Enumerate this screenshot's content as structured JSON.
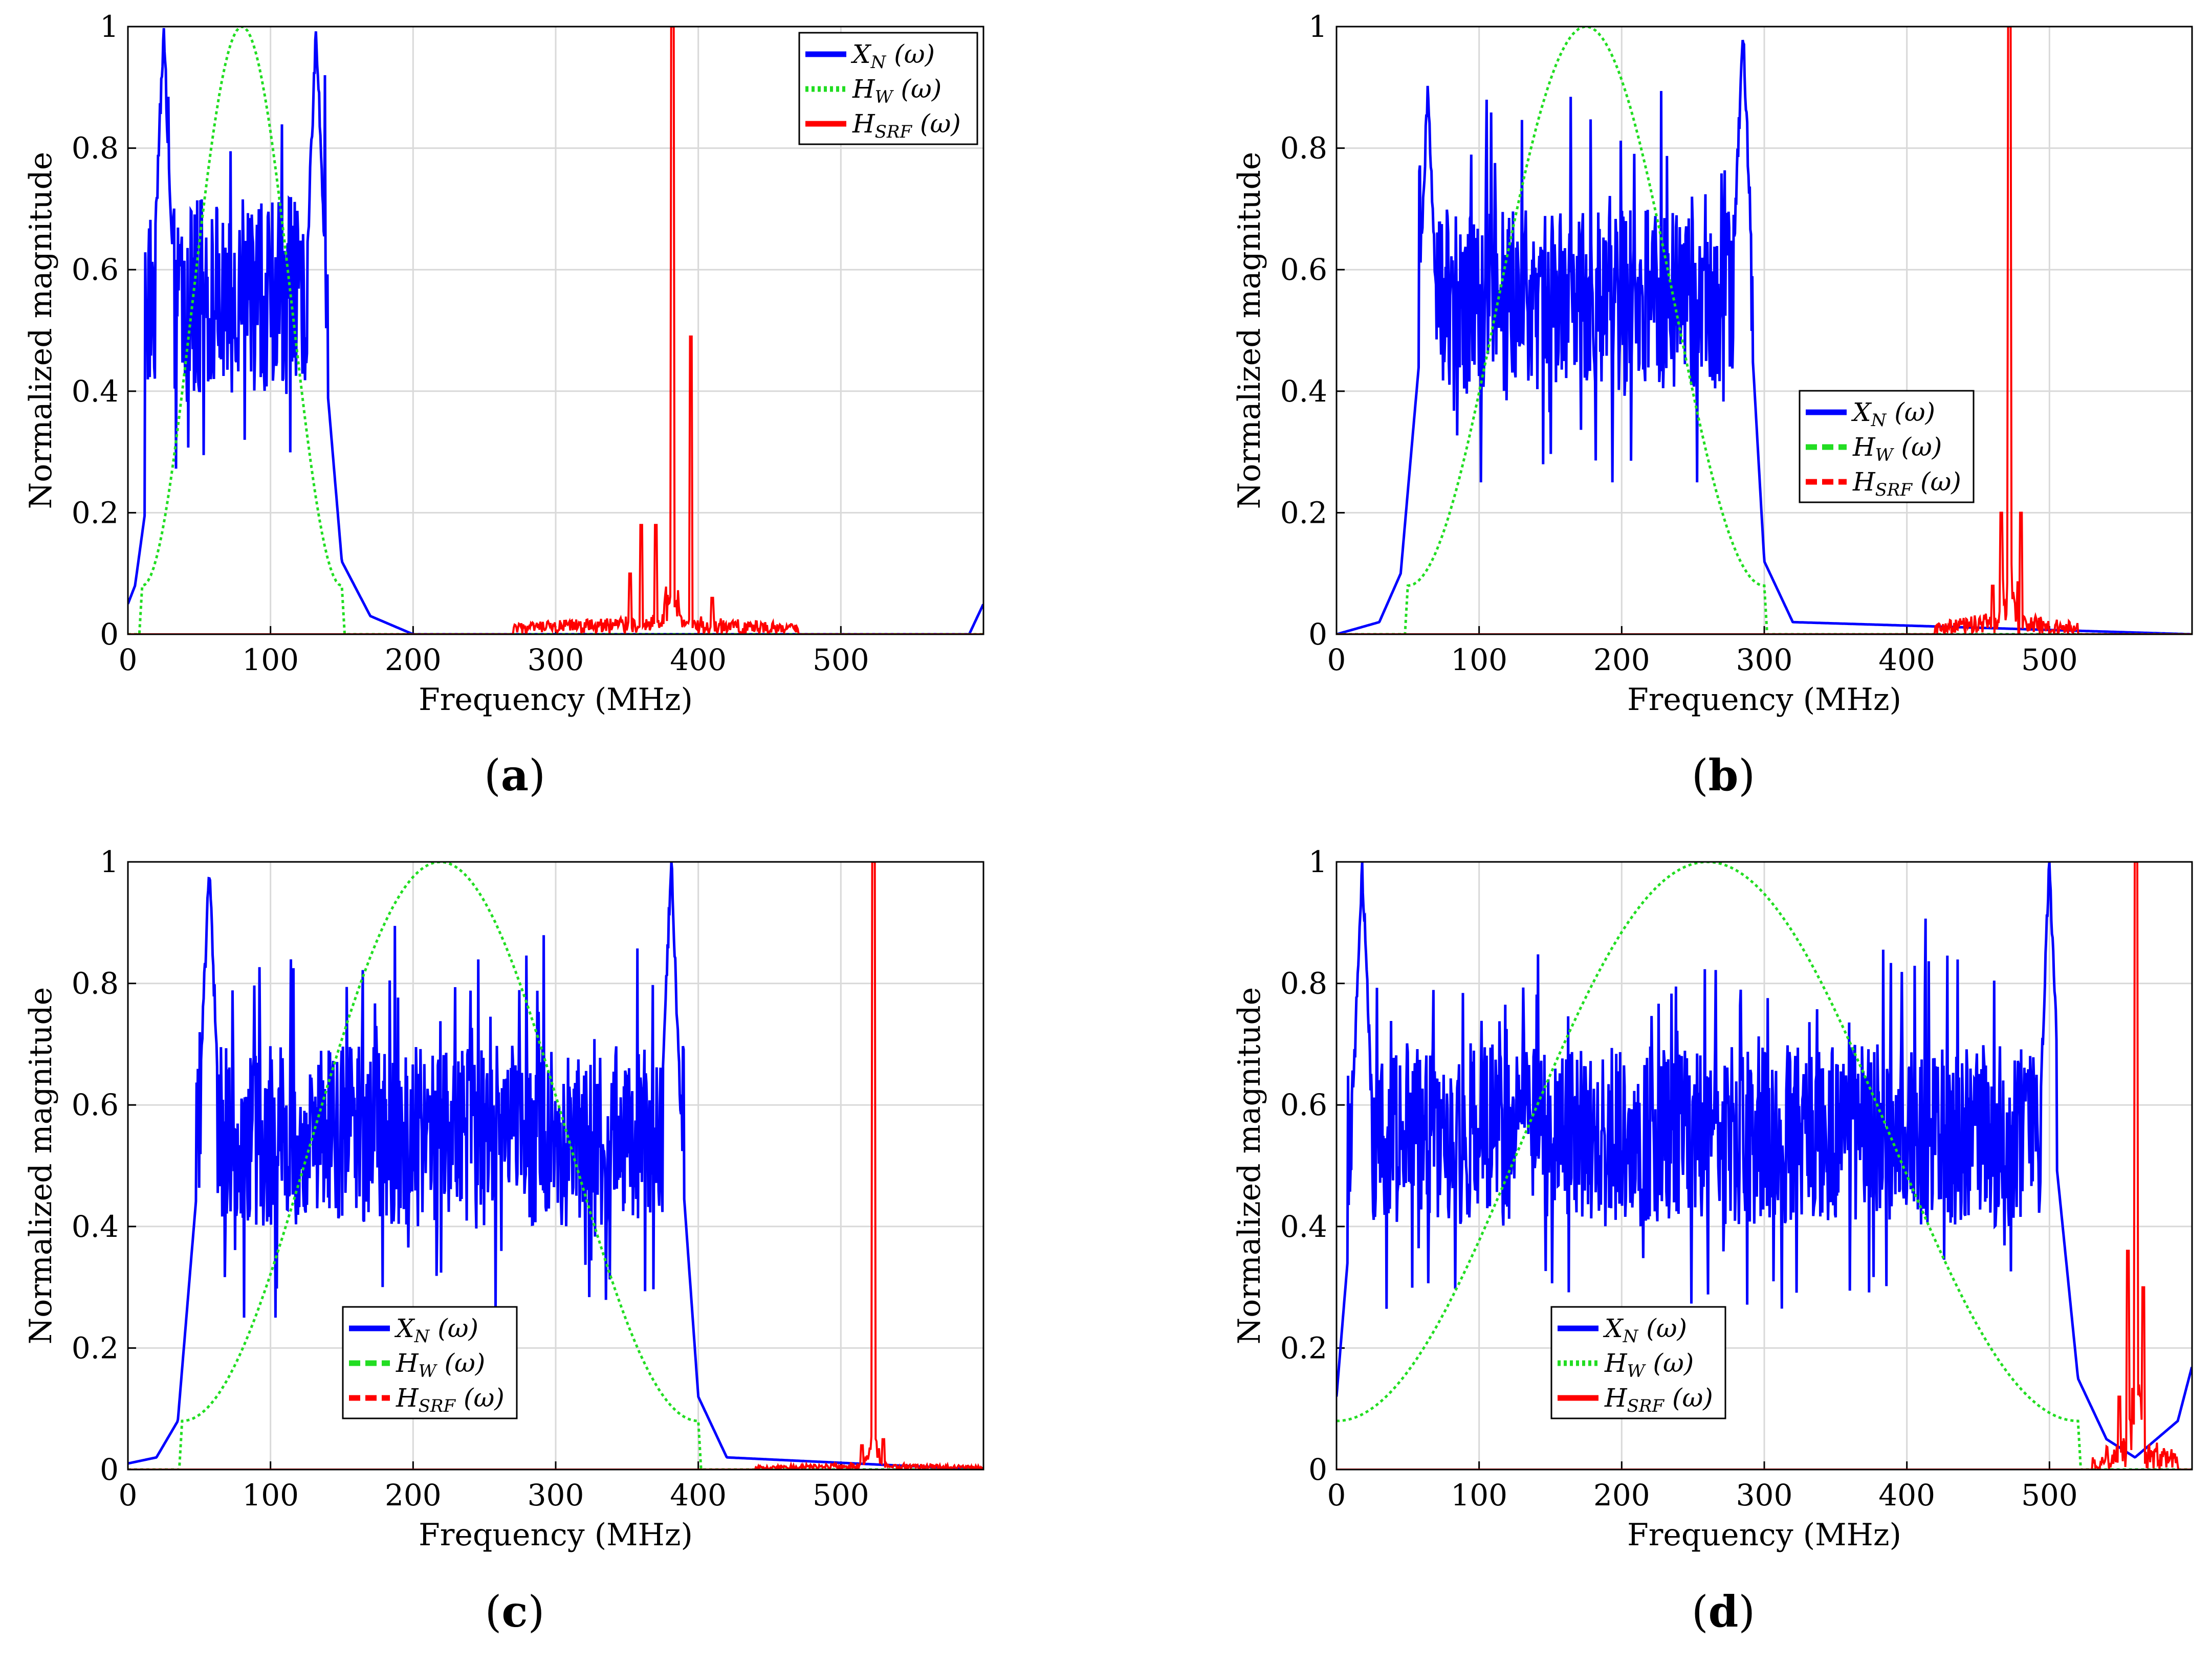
{
  "figure": {
    "colors": {
      "signal": "#0000ff",
      "window": "#22dd22",
      "filter": "#ff0000",
      "grid": "#d9d9d9",
      "frame": "#000000"
    }
  },
  "chart_data": [
    {
      "id": "a",
      "type": "line",
      "panel_label": "a",
      "xlabel": "Frequency (MHz)",
      "ylabel": "Normalized magnitude",
      "xlim": [
        0,
        600
      ],
      "ylim": [
        0,
        1
      ],
      "xticks": [
        "0",
        "100",
        "200",
        "300",
        "400",
        "500"
      ],
      "yticks": [
        "0",
        "0.2",
        "0.4",
        "0.6",
        "0.8",
        "1"
      ],
      "legend_position": "top-right",
      "legend": [
        {
          "base": "X",
          "sub": "N",
          "arg": " (ω)",
          "color": "#0000ff",
          "style": "solid"
        },
        {
          "base": "H",
          "sub": "W",
          "arg": " (ω)",
          "color": "#22dd22",
          "style": "dotted"
        },
        {
          "base": "H",
          "sub": "SRF",
          "arg": " (ω)",
          "color": "#ff0000",
          "style": "solid"
        }
      ],
      "series": [
        {
          "name": "X_N(ω)",
          "kind": "band",
          "start": 12,
          "end": 140,
          "center": 0.56,
          "spread": 0.16,
          "edge_peaks": [
            {
              "x": 25,
              "y": 1.0
            },
            {
              "x": 132,
              "y": 1.0
            }
          ],
          "tail_left": [
            [
              0,
              0.05
            ],
            [
              5,
              0.08
            ],
            [
              12,
              0.2
            ]
          ],
          "tail_right": [
            [
              140,
              0.4
            ],
            [
              150,
              0.12
            ],
            [
              170,
              0.03
            ],
            [
              200,
              0.0
            ],
            [
              590,
              0.0
            ],
            [
              600,
              0.05
            ]
          ]
        },
        {
          "name": "H_W(ω)",
          "kind": "window",
          "start": 10,
          "end": 150,
          "peak_x": 80,
          "edge_value": 0.08
        },
        {
          "name": "H_SRF(ω)",
          "kind": "filter",
          "peak_x": 382,
          "peak": 1.0,
          "secondary": [
            {
              "x": 395,
              "y": 0.49
            },
            {
              "x": 360,
              "y": 0.18
            },
            {
              "x": 370,
              "y": 0.18
            },
            {
              "x": 352,
              "y": 0.1
            },
            {
              "x": 410,
              "y": 0.06
            }
          ],
          "noise_range": [
            270,
            470
          ],
          "noise_level": 0.035
        }
      ]
    },
    {
      "id": "b",
      "type": "line",
      "panel_label": "b",
      "xlabel": "Frequency (MHz)",
      "ylabel": "Normalized magnitude",
      "xlim": [
        0,
        600
      ],
      "ylim": [
        0,
        1
      ],
      "xticks": [
        "0",
        "100",
        "200",
        "300",
        "400",
        "500"
      ],
      "yticks": [
        "0",
        "0.2",
        "0.4",
        "0.6",
        "0.8",
        "1"
      ],
      "legend_position": "center-right",
      "legend": [
        {
          "base": "X",
          "sub": "N",
          "arg": " (ω)",
          "color": "#0000ff",
          "style": "solid"
        },
        {
          "base": "H",
          "sub": "W",
          "arg": " (ω)",
          "color": "#22dd22",
          "style": "dashed"
        },
        {
          "base": "H",
          "sub": "SRF",
          "arg": " (ω)",
          "color": "#ff0000",
          "style": "dashed"
        }
      ],
      "series": [
        {
          "name": "X_N(ω)",
          "kind": "band",
          "start": 58,
          "end": 292,
          "center": 0.55,
          "spread": 0.15,
          "edge_peaks": [
            {
              "x": 64,
              "y": 0.9
            },
            {
              "x": 285,
              "y": 1.0
            }
          ],
          "tail_left": [
            [
              0,
              0.0
            ],
            [
              30,
              0.02
            ],
            [
              45,
              0.1
            ],
            [
              58,
              0.45
            ]
          ],
          "tail_right": [
            [
              292,
              0.45
            ],
            [
              300,
              0.12
            ],
            [
              320,
              0.02
            ],
            [
              600,
              0.0
            ]
          ]
        },
        {
          "name": "H_W(ω)",
          "kind": "window",
          "start": 50,
          "end": 300,
          "peak_x": 175,
          "edge_value": 0.08
        },
        {
          "name": "H_SRF(ω)",
          "kind": "filter",
          "peak_x": 472,
          "peak": 1.0,
          "secondary": [
            {
              "x": 466,
              "y": 0.2
            },
            {
              "x": 480,
              "y": 0.2
            },
            {
              "x": 460,
              "y": 0.08
            }
          ],
          "noise_range": [
            420,
            520
          ],
          "noise_level": 0.04
        }
      ]
    },
    {
      "id": "c",
      "type": "line",
      "panel_label": "c",
      "xlabel": "Frequency (MHz)",
      "ylabel": "Normalized magnitude",
      "xlim": [
        0,
        600
      ],
      "ylim": [
        0,
        1
      ],
      "xticks": [
        "0",
        "100",
        "200",
        "300",
        "400",
        "500"
      ],
      "yticks": [
        "0",
        "0.2",
        "0.4",
        "0.6",
        "0.8",
        "1"
      ],
      "legend_position": "bottom-center",
      "legend": [
        {
          "base": "X",
          "sub": "N",
          "arg": " (ω)",
          "color": "#0000ff",
          "style": "solid"
        },
        {
          "base": "H",
          "sub": "W",
          "arg": " (ω)",
          "color": "#22dd22",
          "style": "dashed"
        },
        {
          "base": "H",
          "sub": "SRF",
          "arg": " (ω)",
          "color": "#ff0000",
          "style": "dashed"
        }
      ],
      "series": [
        {
          "name": "X_N(ω)",
          "kind": "band",
          "start": 48,
          "end": 390,
          "center": 0.55,
          "spread": 0.15,
          "edge_peaks": [
            {
              "x": 57,
              "y": 1.0
            },
            {
              "x": 381,
              "y": 1.0
            }
          ],
          "tail_left": [
            [
              0,
              0.01
            ],
            [
              20,
              0.02
            ],
            [
              35,
              0.08
            ],
            [
              48,
              0.45
            ]
          ],
          "tail_right": [
            [
              390,
              0.45
            ],
            [
              400,
              0.12
            ],
            [
              420,
              0.02
            ],
            [
              600,
              0.0
            ]
          ]
        },
        {
          "name": "H_W(ω)",
          "kind": "window",
          "start": 38,
          "end": 400,
          "peak_x": 220,
          "edge_value": 0.08
        },
        {
          "name": "H_SRF(ω)",
          "kind": "filter",
          "peak_x": 523,
          "peak": 1.0,
          "secondary": [
            {
              "x": 515,
              "y": 0.04
            },
            {
              "x": 530,
              "y": 0.05
            }
          ],
          "noise_range": [
            440,
            600
          ],
          "noise_level": 0.012
        }
      ]
    },
    {
      "id": "d",
      "type": "line",
      "panel_label": "d",
      "xlabel": "Frequency (MHz)",
      "ylabel": "Normalized magnitude",
      "xlim": [
        0,
        600
      ],
      "ylim": [
        0,
        1
      ],
      "xticks": [
        "0",
        "100",
        "200",
        "300",
        "400",
        "500"
      ],
      "yticks": [
        "0",
        "0.2",
        "0.4",
        "0.6",
        "0.8",
        "1"
      ],
      "legend_position": "bottom-center",
      "legend": [
        {
          "base": "X",
          "sub": "N",
          "arg": " (ω)",
          "color": "#0000ff",
          "style": "solid"
        },
        {
          "base": "H",
          "sub": "W",
          "arg": " (ω)",
          "color": "#22dd22",
          "style": "dotted"
        },
        {
          "base": "H",
          "sub": "SRF",
          "arg": " (ω)",
          "color": "#ff0000",
          "style": "solid"
        }
      ],
      "series": [
        {
          "name": "X_N(ω)",
          "kind": "band",
          "start": 8,
          "end": 505,
          "center": 0.55,
          "spread": 0.15,
          "edge_peaks": [
            {
              "x": 18,
              "y": 1.0
            },
            {
              "x": 500,
              "y": 1.0
            }
          ],
          "tail_left": [
            [
              0,
              0.12
            ],
            [
              8,
              0.35
            ]
          ],
          "tail_right": [
            [
              505,
              0.5
            ],
            [
              520,
              0.15
            ],
            [
              540,
              0.05
            ],
            [
              560,
              0.02
            ],
            [
              590,
              0.08
            ],
            [
              600,
              0.17
            ]
          ]
        },
        {
          "name": "H_W(ω)",
          "kind": "window",
          "start": 0,
          "end": 520,
          "peak_x": 260,
          "edge_value": 0.08
        },
        {
          "name": "H_SRF(ω)",
          "kind": "filter",
          "peak_x": 561,
          "peak": 1.0,
          "secondary": [
            {
              "x": 555,
              "y": 0.36
            },
            {
              "x": 566,
              "y": 0.3
            },
            {
              "x": 549,
              "y": 0.12
            }
          ],
          "noise_range": [
            530,
            590
          ],
          "noise_level": 0.06
        }
      ]
    }
  ]
}
